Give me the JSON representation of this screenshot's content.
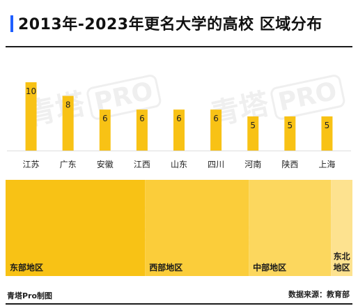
{
  "title": "2013年-2023年更名大学的高校 区域分布",
  "watermark": {
    "char": "青塔",
    "badge": "PRO"
  },
  "colors": {
    "title_accent": "#1f5fff",
    "bar": "#f8c215",
    "regions": [
      "#f8c215",
      "#fbcd3a",
      "#fcd75e",
      "#fde28f"
    ]
  },
  "chart_data": [
    {
      "type": "bar",
      "categories": [
        "江苏",
        "广东",
        "安徽",
        "江西",
        "山东",
        "四川",
        "河南",
        "陕西",
        "上海"
      ],
      "values": [
        10,
        8,
        6,
        6,
        6,
        6,
        5,
        5,
        5
      ],
      "title": "2013年-2023年更名大学的高校 区域分布",
      "xlabel": "",
      "ylabel": "",
      "ylim": [
        0,
        10
      ]
    },
    {
      "type": "treemap",
      "categories": [
        "东部地区",
        "西部地区",
        "中部地区",
        "东北地区"
      ],
      "values": [
        39,
        29,
        23,
        6
      ]
    }
  ],
  "footer": {
    "left": "青塔Pro制图",
    "right": "数据来源：教育部"
  }
}
